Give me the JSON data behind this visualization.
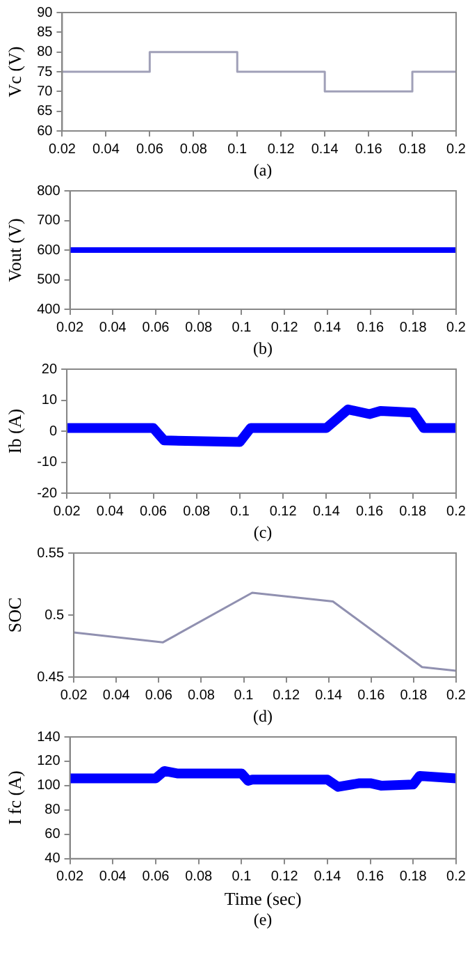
{
  "chart_data": [
    {
      "type": "step",
      "ylabel": "Vc (V)",
      "annotations": [
        "(a)"
      ],
      "xlim": [
        0.02,
        0.2
      ],
      "xticks": [
        0.02,
        0.04,
        0.06,
        0.08,
        0.1,
        0.12,
        0.14,
        0.16,
        0.18,
        0.2
      ],
      "ylim": [
        60,
        90
      ],
      "yticks": [
        60,
        65,
        70,
        75,
        80,
        85,
        90
      ],
      "grid": false,
      "legend": false,
      "series": [
        {
          "color": "#a0a0b8",
          "x": [
            0.02,
            0.06,
            0.1,
            0.14,
            0.18,
            0.2
          ],
          "values": [
            75,
            80,
            75,
            70,
            75,
            75
          ]
        }
      ]
    },
    {
      "type": "line",
      "ylabel": "Vout (V)",
      "annotations": [
        "(b)"
      ],
      "xlim": [
        0.02,
        0.2
      ],
      "xticks": [
        0.02,
        0.04,
        0.06,
        0.08,
        0.1,
        0.12,
        0.14,
        0.16,
        0.18,
        0.2
      ],
      "ylim": [
        400,
        800
      ],
      "yticks": [
        400,
        500,
        600,
        700,
        800
      ],
      "grid": false,
      "legend": false,
      "series": [
        {
          "color": "#0000ff",
          "x": [
            0.02,
            0.2
          ],
          "values": [
            600,
            600
          ]
        }
      ]
    },
    {
      "type": "line",
      "ylabel": "Ib (A)",
      "annotations": [
        "(c)"
      ],
      "xlim": [
        0.02,
        0.2
      ],
      "xticks": [
        0.02,
        0.04,
        0.06,
        0.08,
        0.1,
        0.12,
        0.14,
        0.16,
        0.18,
        0.2
      ],
      "ylim": [
        -20,
        20
      ],
      "yticks": [
        -20,
        -10,
        0,
        10,
        20
      ],
      "grid": false,
      "legend": false,
      "series": [
        {
          "color": "#0000ff",
          "x": [
            0.02,
            0.06,
            0.065,
            0.1,
            0.105,
            0.14,
            0.15,
            0.16,
            0.165,
            0.18,
            0.185,
            0.2
          ],
          "values": [
            1,
            1,
            -3,
            -3.5,
            1,
            1,
            7,
            5.5,
            6.5,
            6,
            1,
            1
          ]
        }
      ]
    },
    {
      "type": "line",
      "ylabel": "SOC",
      "annotations": [
        "(d)"
      ],
      "xlim": [
        0.02,
        0.2
      ],
      "xticks": [
        0.02,
        0.04,
        0.06,
        0.08,
        0.1,
        0.12,
        0.14,
        0.16,
        0.18,
        0.2
      ],
      "ylim": [
        0.45,
        0.55
      ],
      "yticks": [
        0.45,
        0.5,
        0.55
      ],
      "grid": false,
      "legend": false,
      "series": [
        {
          "color": "#9090b0",
          "x": [
            0.02,
            0.062,
            0.104,
            0.142,
            0.184,
            0.2
          ],
          "values": [
            0.486,
            0.478,
            0.518,
            0.511,
            0.458,
            0.455
          ]
        }
      ]
    },
    {
      "type": "line",
      "ylabel": "I fc (A)",
      "xlabel": "Time (sec)",
      "annotations": [
        "(e)"
      ],
      "xlim": [
        0.02,
        0.2
      ],
      "xticks": [
        0.02,
        0.04,
        0.06,
        0.08,
        0.1,
        0.12,
        0.14,
        0.16,
        0.18,
        0.2
      ],
      "ylim": [
        40,
        140
      ],
      "yticks": [
        40,
        60,
        80,
        100,
        120,
        140
      ],
      "grid": false,
      "legend": false,
      "series": [
        {
          "color": "#0000ff",
          "x": [
            0.02,
            0.06,
            0.064,
            0.07,
            0.1,
            0.103,
            0.105,
            0.14,
            0.145,
            0.155,
            0.16,
            0.165,
            0.18,
            0.183,
            0.2
          ],
          "values": [
            106,
            106,
            112,
            110,
            110,
            104,
            105,
            105,
            99,
            102,
            102,
            100,
            101,
            108,
            106
          ]
        }
      ]
    }
  ]
}
